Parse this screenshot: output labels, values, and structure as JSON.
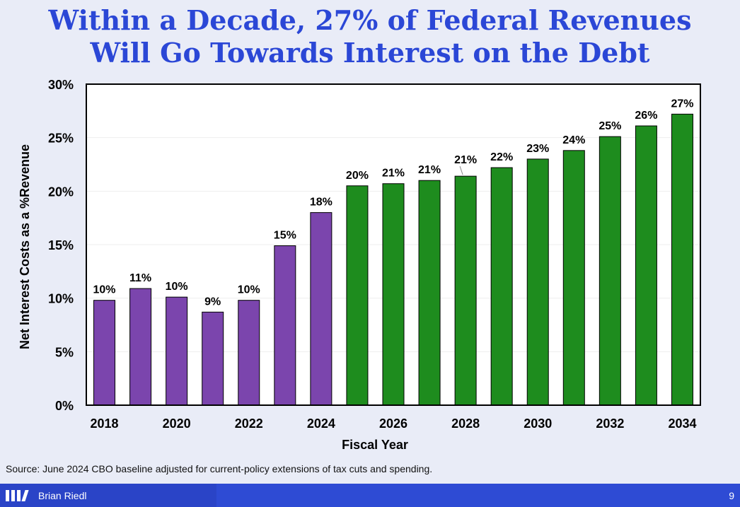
{
  "slide": {
    "title_line1": "Within a Decade, 27% of Federal Revenues",
    "title_line2": "Will Go Towards Interest on the Debt",
    "source": "Source: June 2024 CBO baseline adjusted for current-policy extensions of tax cuts and spending.",
    "author": "Brian Riedl",
    "page_number": "9"
  },
  "colors": {
    "title": "#2b47d6",
    "historical": "#7b45ad",
    "projected": "#1e8c1e",
    "footer": "#2a44c7"
  },
  "chart_data": {
    "type": "bar",
    "title": "Within a Decade, 27% of Federal Revenues Will Go Towards Interest on the Debt",
    "xlabel": "Fiscal Year",
    "ylabel": "Net Interest Costs as a %Revenue",
    "ylim": [
      0,
      30
    ],
    "yticks": [
      "0%",
      "5%",
      "10%",
      "15%",
      "20%",
      "25%",
      "30%"
    ],
    "grid": true,
    "categories": [
      "2018",
      "2019",
      "2020",
      "2021",
      "2022",
      "2023",
      "2024",
      "2025",
      "2026",
      "2027",
      "2028",
      "2029",
      "2030",
      "2031",
      "2032",
      "2033",
      "2034"
    ],
    "xtick_labels": [
      "2018",
      "",
      "2020",
      "",
      "2022",
      "",
      "2024",
      "",
      "2026",
      "",
      "2028",
      "",
      "2030",
      "",
      "2032",
      "",
      "2034"
    ],
    "values": [
      9.8,
      10.9,
      10.1,
      8.7,
      9.8,
      14.9,
      18.0,
      20.5,
      20.7,
      21.0,
      21.4,
      22.2,
      23.0,
      23.8,
      25.1,
      26.1,
      27.2
    ],
    "labels": [
      "10%",
      "11%",
      "10%",
      "9%",
      "10%",
      "15%",
      "18%",
      "20%",
      "21%",
      "21%",
      "21%",
      "22%",
      "23%",
      "24%",
      "25%",
      "26%",
      "27%"
    ],
    "bar_colors": [
      "#7b45ad",
      "#7b45ad",
      "#7b45ad",
      "#7b45ad",
      "#7b45ad",
      "#7b45ad",
      "#7b45ad",
      "#1e8c1e",
      "#1e8c1e",
      "#1e8c1e",
      "#1e8c1e",
      "#1e8c1e",
      "#1e8c1e",
      "#1e8c1e",
      "#1e8c1e",
      "#1e8c1e",
      "#1e8c1e"
    ]
  }
}
